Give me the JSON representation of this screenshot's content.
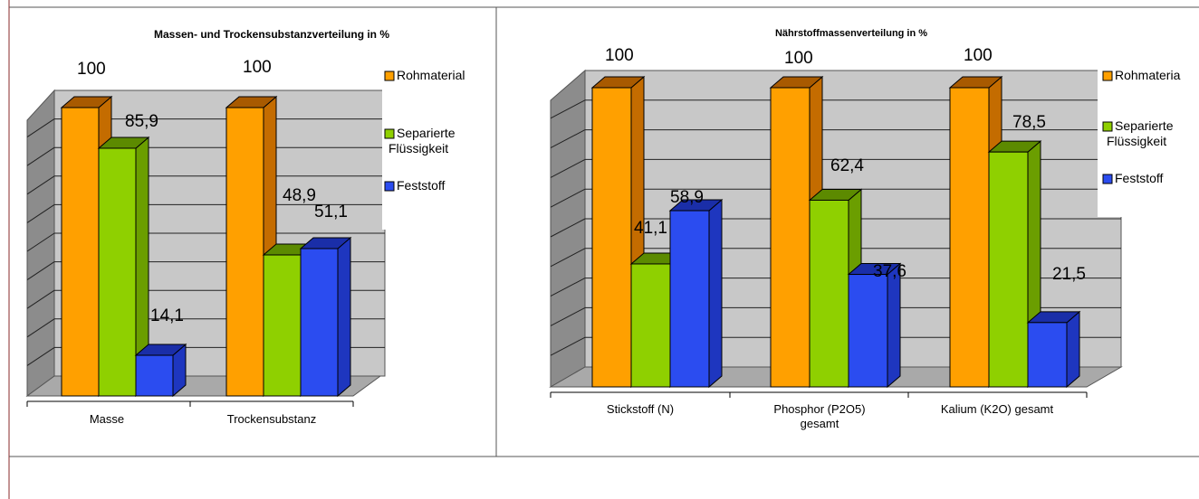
{
  "colors": {
    "series": [
      "#ffa000",
      "#8fd000",
      "#2b4cf0"
    ],
    "series_top": [
      "#a85a00",
      "#5c8a00",
      "#1a2ea8"
    ],
    "series_side": [
      "#c46c00",
      "#6b9e00",
      "#1e36bf"
    ],
    "wall": "#c8c8c8",
    "wall_side": "#8c8c8c",
    "floor": "#a9a9a9",
    "border": "#b07070"
  },
  "chart_data": [
    {
      "type": "bar",
      "title": "Massen- und Trockensubstanzverteilung in %",
      "categories": [
        "Masse",
        "Trockensubstanz"
      ],
      "series": [
        {
          "name": "Rohmaterial",
          "values": [
            100,
            100
          ]
        },
        {
          "name": "Separierte Flüssigkeit",
          "values": [
            85.9,
            48.9
          ]
        },
        {
          "name": "Feststoff",
          "values": [
            14.1,
            51.1
          ]
        }
      ],
      "value_labels": [
        [
          "100",
          "85,9",
          "14,1"
        ],
        [
          "100",
          "48,9",
          "51,1"
        ]
      ],
      "legend": [
        "Rohmaterial",
        "Separierte Flüssigkeit",
        "Feststoff"
      ],
      "ylim": [
        0,
        100
      ],
      "grid": true
    },
    {
      "type": "bar",
      "title": "Nährstoffmassenverteilung in %",
      "categories": [
        "Stickstoff (N)",
        "Phosphor (P2O5) gesamt",
        "Kalium (K2O) gesamt"
      ],
      "series": [
        {
          "name": "Rohmaterial",
          "values": [
            100,
            100,
            100
          ]
        },
        {
          "name": "Separierte Flüssigkeit",
          "values": [
            41.1,
            62.4,
            78.5
          ]
        },
        {
          "name": "Feststoff",
          "values": [
            58.9,
            37.6,
            21.5
          ]
        }
      ],
      "value_labels": [
        [
          "100",
          "41,1",
          "58,9"
        ],
        [
          "100",
          "62,4",
          "37,6"
        ],
        [
          "100",
          "78,5",
          "21,5"
        ]
      ],
      "legend": [
        "Rohmateria",
        "Separierte Flüssigkeit",
        "Feststoff"
      ],
      "ylim": [
        0,
        100
      ],
      "grid": true
    }
  ]
}
